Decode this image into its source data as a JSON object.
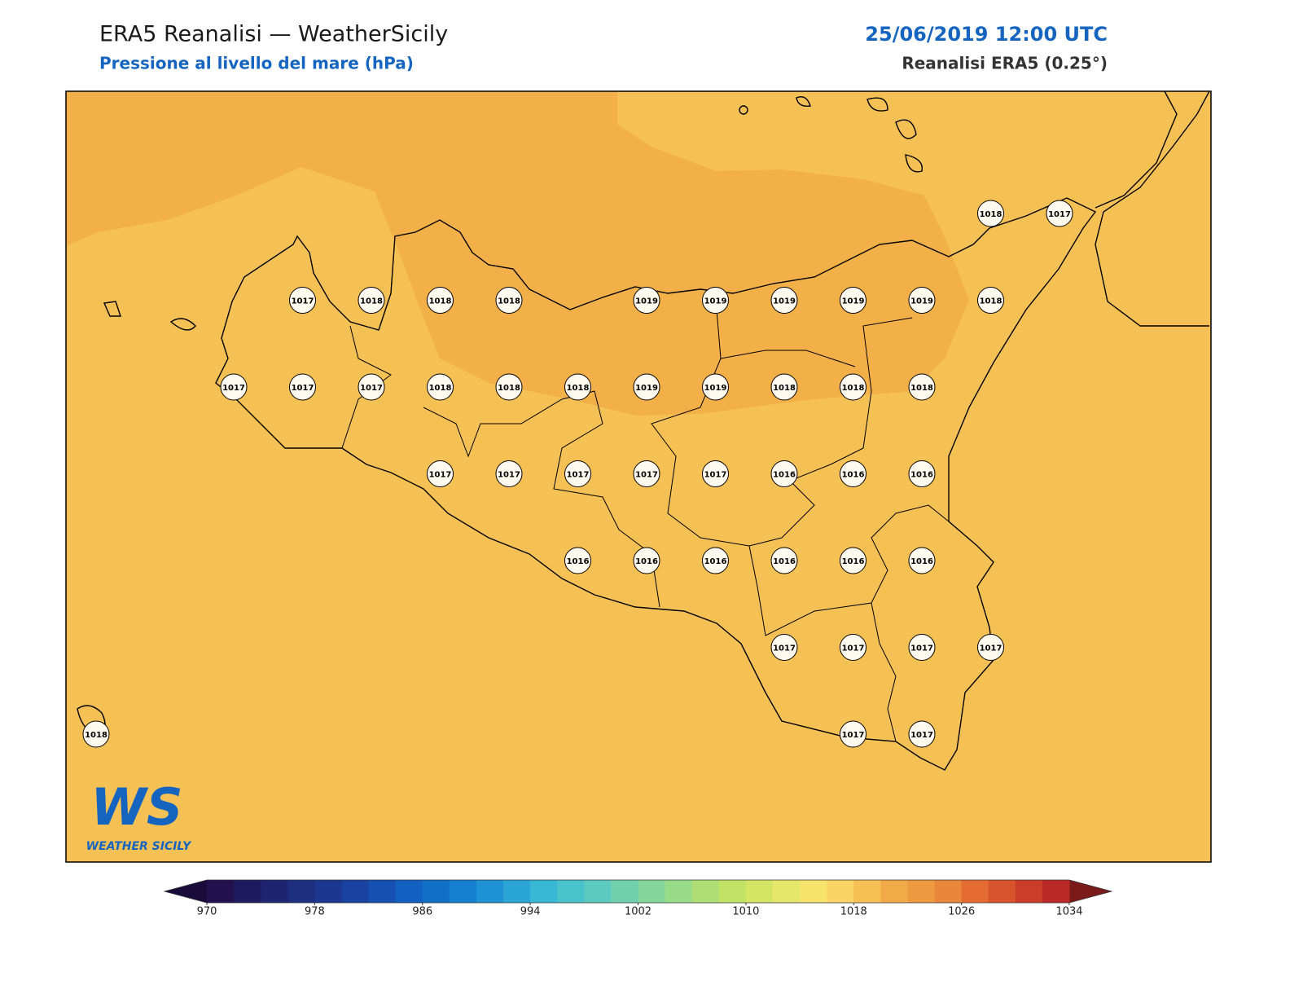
{
  "header": {
    "title": "ERA5 Reanalisi — WeatherSicily",
    "subtitle": "Pressione al livello del mare (hPa)",
    "datetime": "25/06/2019 12:00 UTC",
    "source": "Reanalisi ERA5 (0.25°)"
  },
  "stations": {
    "rows": [
      [
        null,
        null,
        null,
        null,
        null,
        null,
        null,
        null,
        null,
        null,
        null,
        null,
        null,
        1018,
        1017
      ],
      [
        null,
        null,
        null,
        1017,
        1018,
        1018,
        1018,
        null,
        1019,
        1019,
        1019,
        1019,
        1019,
        1018,
        null
      ],
      [
        null,
        null,
        1017,
        1017,
        1017,
        1018,
        1018,
        1018,
        1019,
        1019,
        1018,
        1018,
        1018,
        null,
        null
      ],
      [
        null,
        null,
        null,
        null,
        null,
        1017,
        1017,
        1017,
        1017,
        1017,
        1016,
        1016,
        1016,
        null,
        null
      ],
      [
        null,
        null,
        null,
        null,
        null,
        null,
        null,
        1016,
        1016,
        1016,
        1016,
        1016,
        1016,
        null,
        null
      ],
      [
        null,
        null,
        null,
        null,
        null,
        null,
        null,
        null,
        null,
        null,
        1017,
        1017,
        1017,
        1017,
        null
      ],
      [
        1018,
        null,
        null,
        null,
        null,
        null,
        null,
        null,
        null,
        null,
        null,
        1017,
        1017,
        null,
        null
      ]
    ]
  },
  "colorbar": {
    "lim": [
      970,
      1034
    ],
    "ticks": [
      970,
      978,
      986,
      994,
      1002,
      1010,
      1018,
      1026,
      1034
    ],
    "colors": [
      "#22104f",
      "#1f1a5e",
      "#1f2470",
      "#1e2e80",
      "#1c3790",
      "#1a42a0",
      "#1650b0",
      "#1260bf",
      "#1070c8",
      "#1580cf",
      "#1e92d4",
      "#2aa5d6",
      "#38b8d4",
      "#48c3cb",
      "#5ccabe",
      "#70d0ae",
      "#84d69c",
      "#98db88",
      "#aede74",
      "#c2e266",
      "#d4e565",
      "#e6e76a",
      "#f5e36c",
      "#fad464",
      "#f6c055",
      "#f2a948",
      "#ee9a40",
      "#ea863a",
      "#e46b32",
      "#d8542d",
      "#cc3c2b",
      "#bc2a28"
    ],
    "under_color": "#1a0c3a",
    "over_color": "#7a1a1a"
  },
  "logo": {
    "mark": "WS",
    "text": "WEATHER SICILY"
  }
}
